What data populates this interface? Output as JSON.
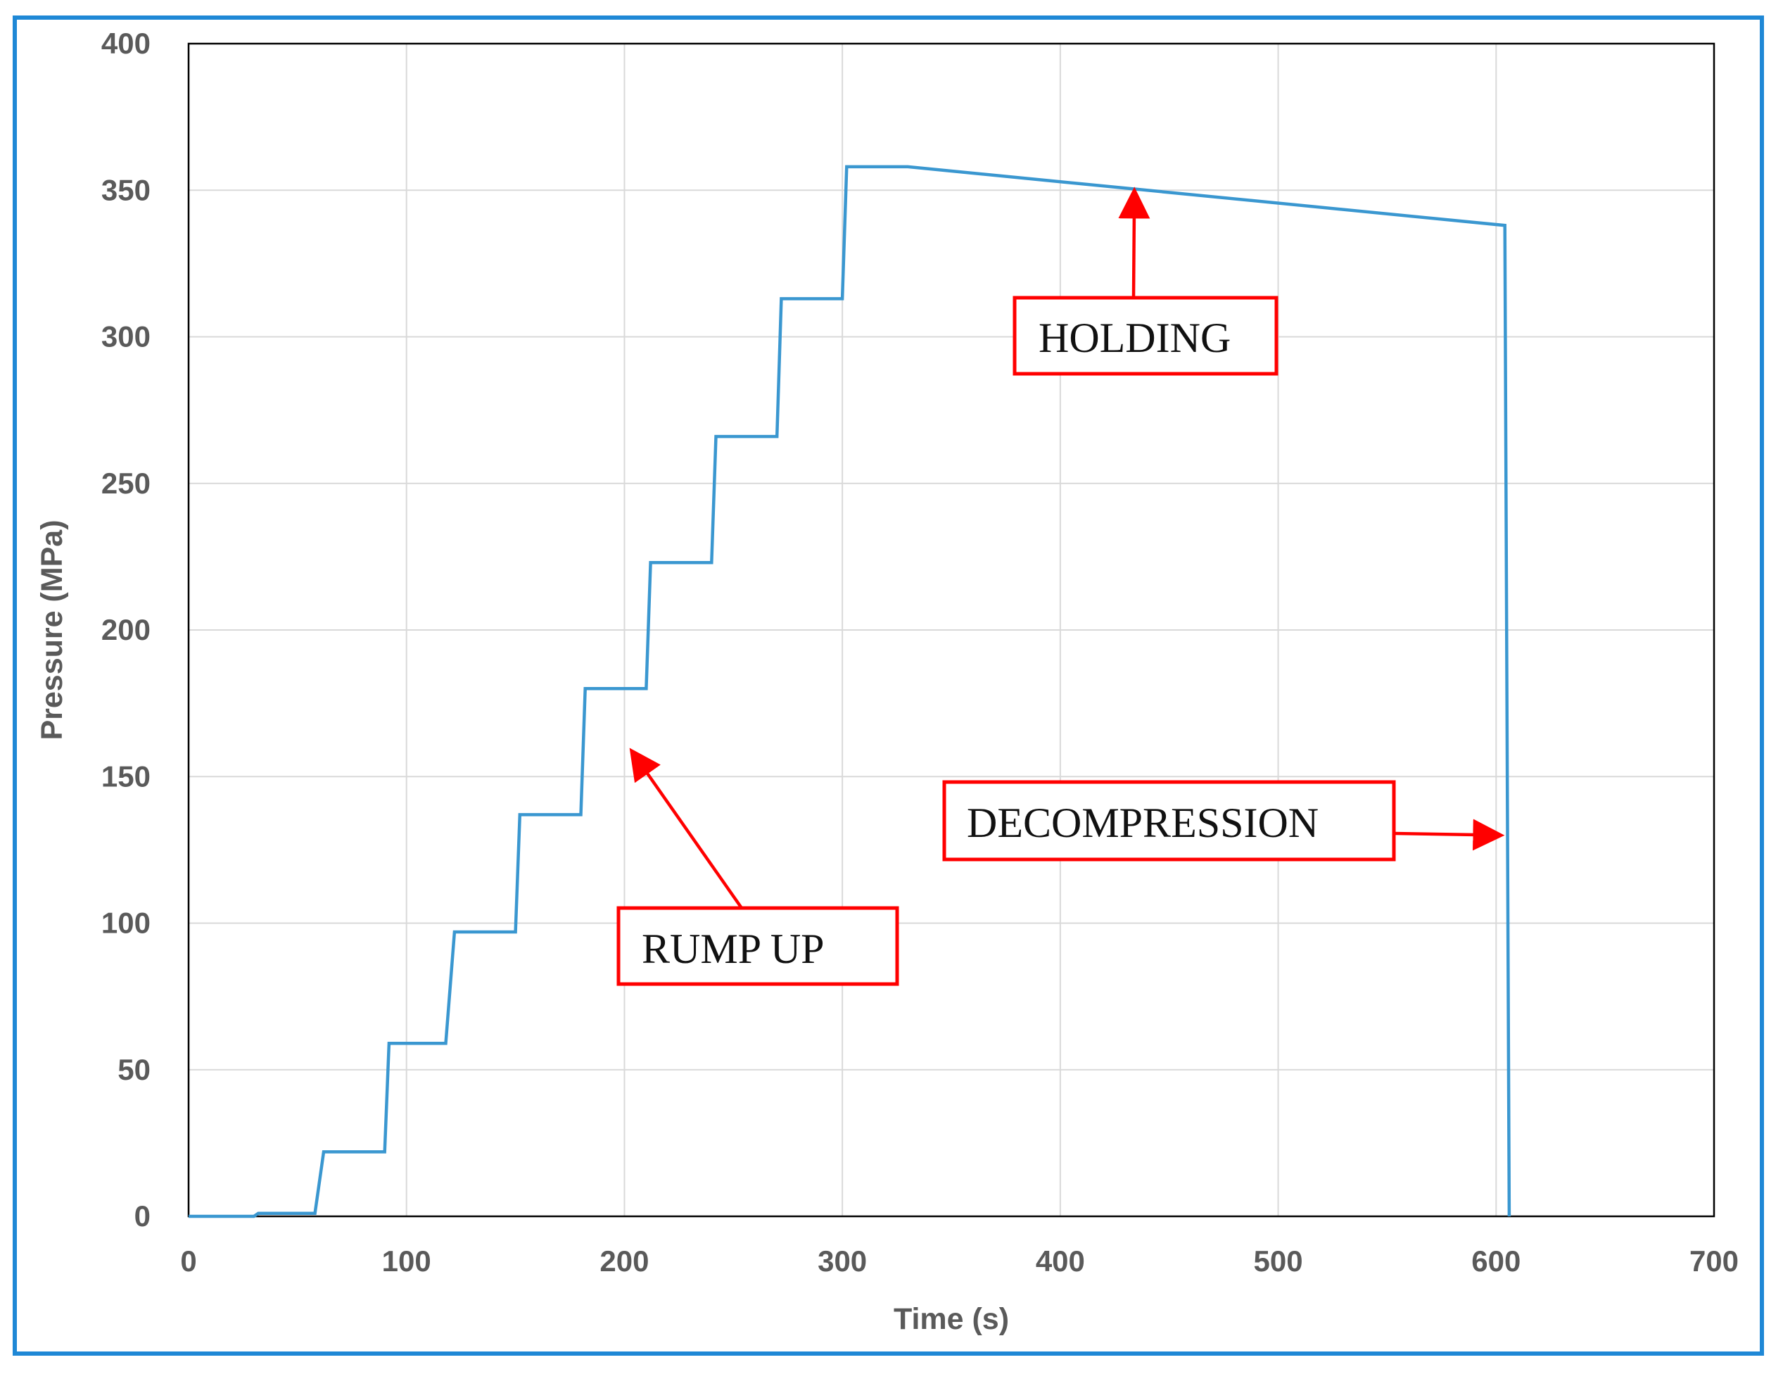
{
  "colors": {
    "frame": "#1f88d6",
    "series": "#3a97d0",
    "annotation": "#ff0000",
    "grid": "#d9d9d9",
    "axis_text": "#5a5a5a"
  },
  "chart_data": {
    "type": "line",
    "title": "",
    "xlabel": "Time (s)",
    "ylabel": "Pressure (MPa)",
    "xlim": [
      0,
      700
    ],
    "ylim": [
      0,
      400
    ],
    "xticks": [
      0,
      100,
      200,
      300,
      400,
      500,
      600,
      700
    ],
    "yticks": [
      0,
      50,
      100,
      150,
      200,
      250,
      300,
      350,
      400
    ],
    "grid": true,
    "series": [
      {
        "x": [
          0,
          30,
          32,
          58,
          62,
          90,
          92,
          118,
          122,
          150,
          152,
          180,
          182,
          210,
          212,
          240,
          242,
          270,
          272,
          300,
          302,
          330,
          604,
          606
        ],
        "y": [
          0,
          0,
          1,
          1,
          22,
          22,
          59,
          59,
          97,
          97,
          137,
          137,
          180,
          180,
          223,
          223,
          266,
          266,
          313,
          313,
          358,
          358,
          338,
          0
        ]
      }
    ],
    "annotations": [
      {
        "id": "holding",
        "text": "HOLDING",
        "arrow_to": [
          434,
          349
        ]
      },
      {
        "id": "decompression",
        "text": "DECOMPRESSION",
        "arrow_to": [
          601,
          130
        ]
      },
      {
        "id": "rump-up",
        "text": "RUMP UP",
        "arrow_to": [
          204,
          158
        ]
      }
    ]
  }
}
